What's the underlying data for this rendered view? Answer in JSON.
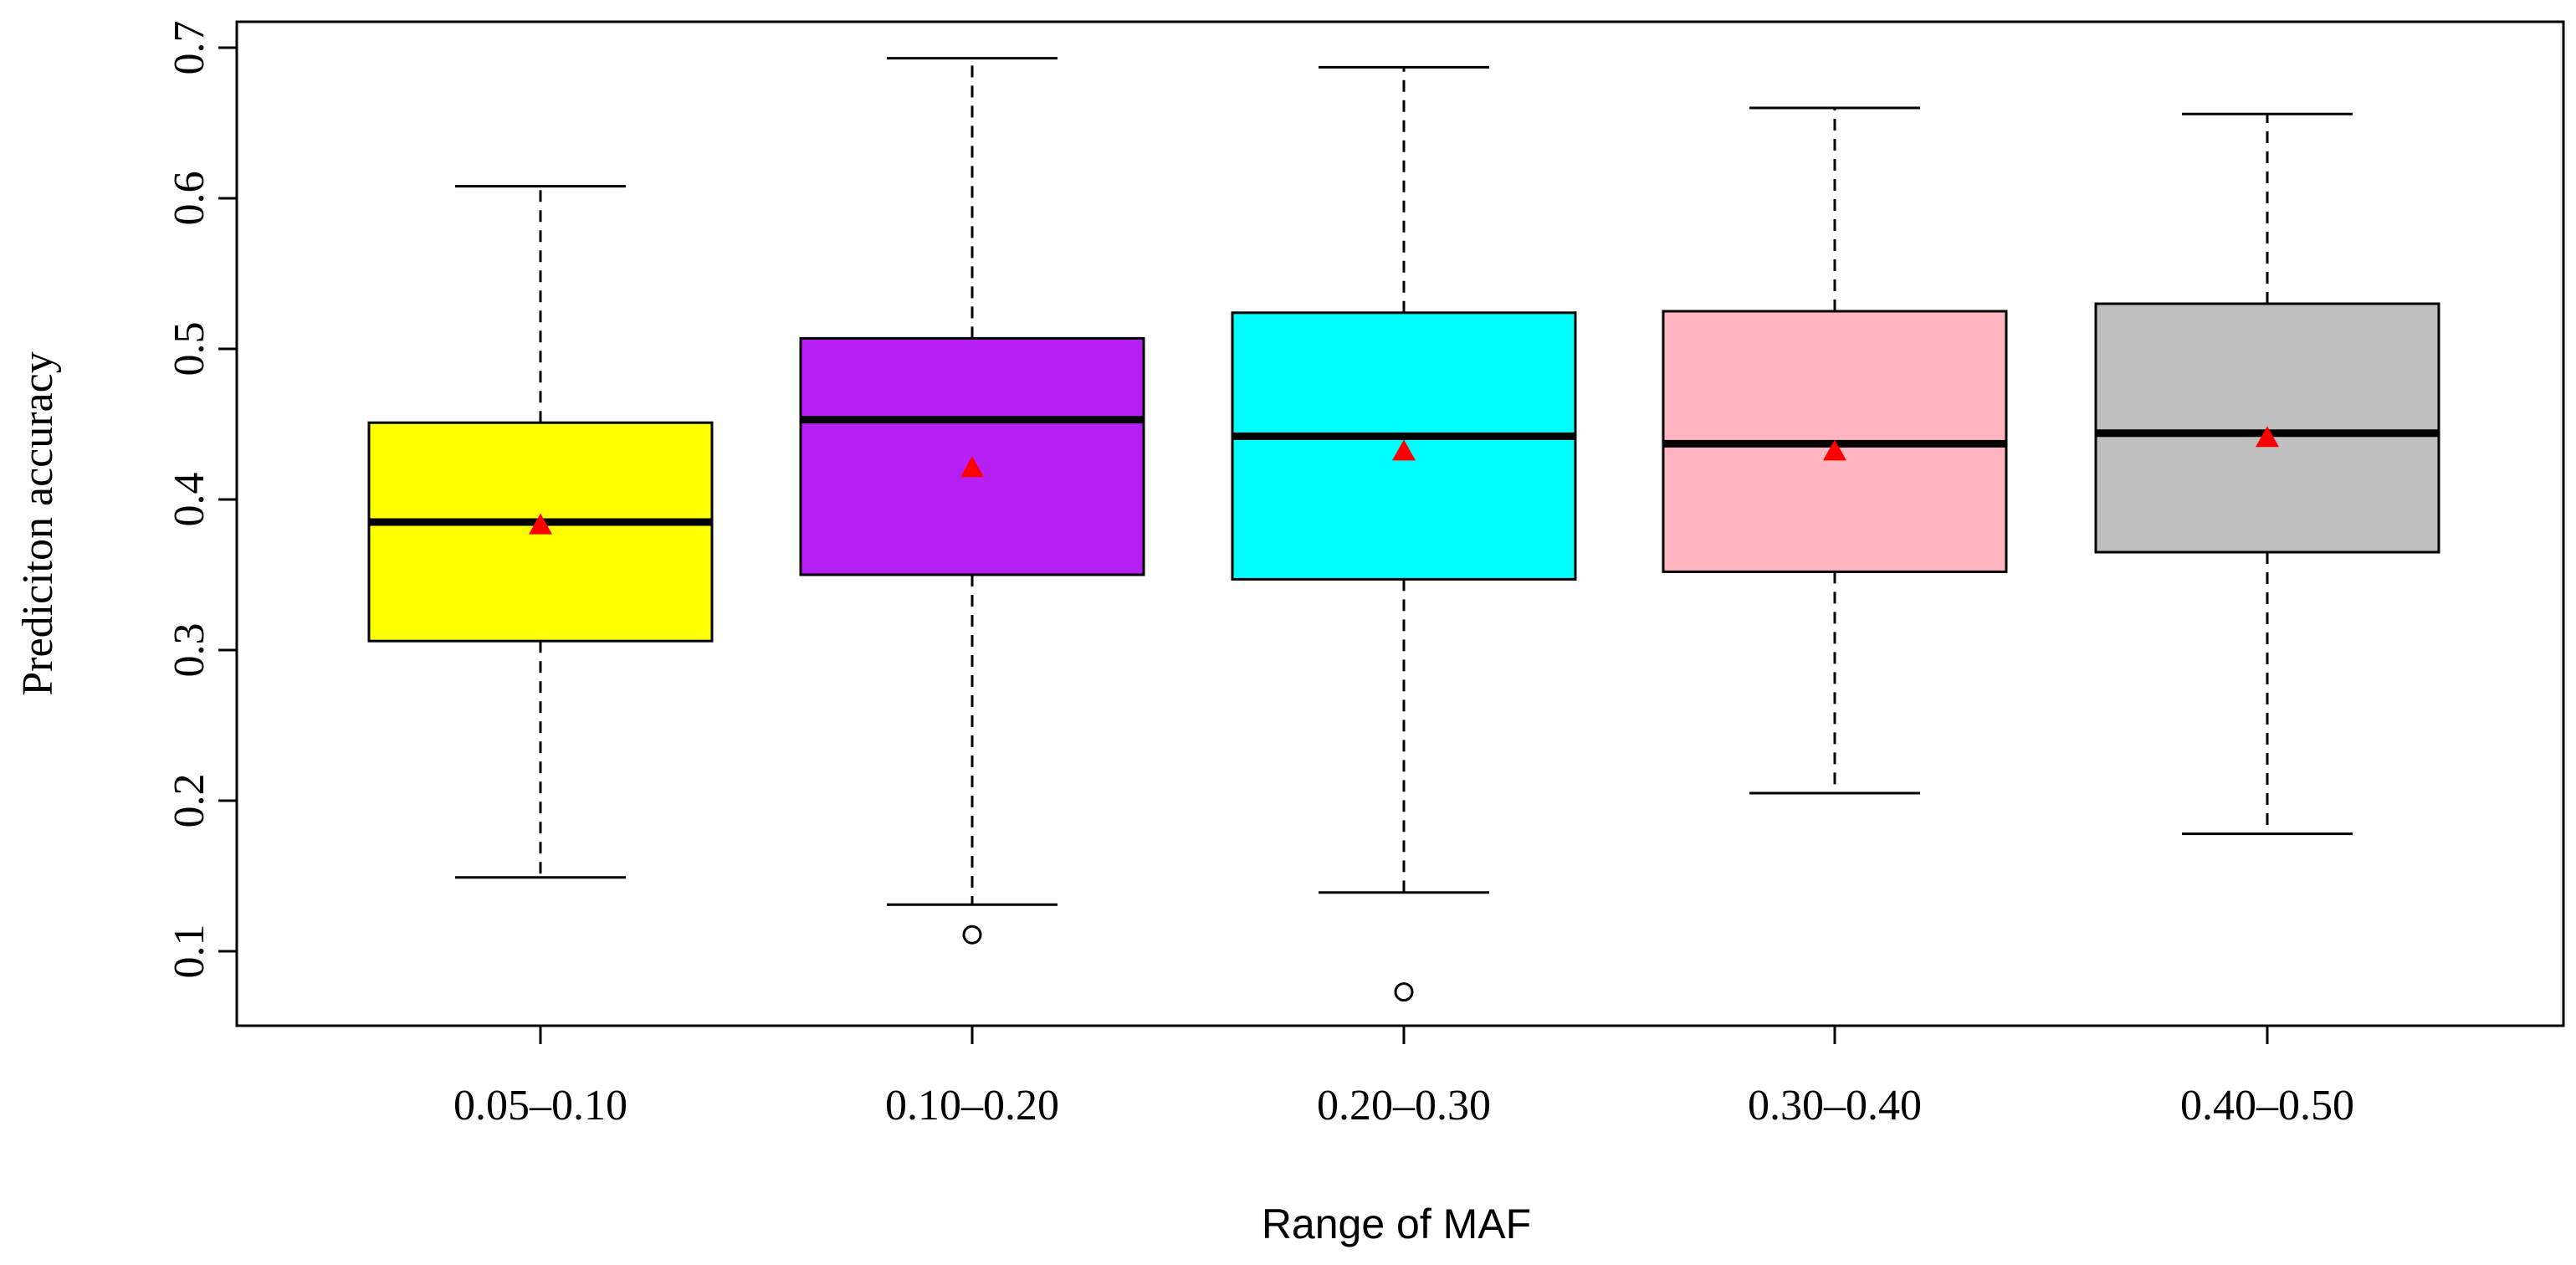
{
  "chart_data": {
    "type": "boxplot",
    "title": "",
    "xlabel": "Range of MAF",
    "ylabel": "Prediciton accuracy",
    "ylim": [
      0.05,
      0.72
    ],
    "yticks": [
      0.1,
      0.2,
      0.3,
      0.4,
      0.5,
      0.6,
      0.7
    ],
    "ytick_labels": [
      "0.1",
      "0.2",
      "0.3",
      "0.4",
      "0.5",
      "0.6",
      "0.7"
    ],
    "grid": false,
    "categories": [
      "0.05–0.10",
      "0.10–0.20",
      "0.20–0.30",
      "0.30–0.40",
      "0.40–0.50"
    ],
    "boxes": [
      {
        "label": "0.05–0.10",
        "whisker_low": 0.149,
        "q1": 0.306,
        "median": 0.385,
        "q3": 0.451,
        "whisker_high": 0.608,
        "mean": 0.383,
        "outliers": [],
        "color": "#ffff00"
      },
      {
        "label": "0.10–0.20",
        "whisker_low": 0.131,
        "q1": 0.35,
        "median": 0.453,
        "q3": 0.507,
        "whisker_high": 0.693,
        "mean": 0.421,
        "outliers": [
          0.111
        ],
        "color": "#b620f5"
      },
      {
        "label": "0.20–0.30",
        "whisker_low": 0.139,
        "q1": 0.347,
        "median": 0.442,
        "q3": 0.524,
        "whisker_high": 0.687,
        "mean": 0.432,
        "outliers": [
          0.073
        ],
        "color": "#00ffff"
      },
      {
        "label": "0.30–0.40",
        "whisker_low": 0.205,
        "q1": 0.352,
        "median": 0.437,
        "q3": 0.525,
        "whisker_high": 0.66,
        "mean": 0.432,
        "outliers": [],
        "color": "#ffb6c1"
      },
      {
        "label": "0.40–0.50",
        "whisker_low": 0.178,
        "q1": 0.365,
        "median": 0.444,
        "q3": 0.53,
        "whisker_high": 0.656,
        "mean": 0.441,
        "outliers": [],
        "color": "#bebebe"
      }
    ],
    "mean_marker_color": "#ff0000"
  }
}
